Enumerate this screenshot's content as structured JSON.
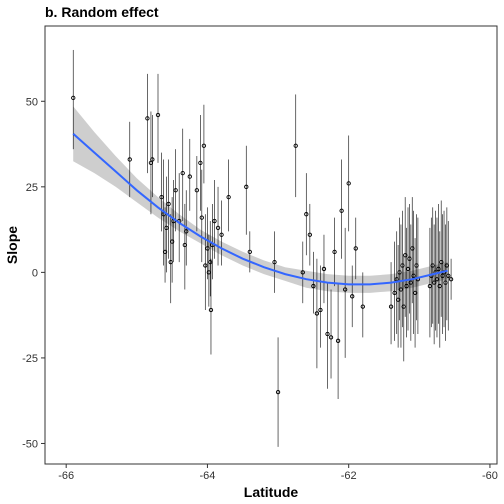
{
  "chart_data": {
    "type": "scatter",
    "title": "b. Random effect",
    "xlabel": "Latitude",
    "ylabel": "Slope",
    "xlim": [
      -66.3,
      -59.9
    ],
    "ylim": [
      -56,
      72
    ],
    "xticks": [
      -66,
      -64,
      -62,
      -60
    ],
    "yticks": [
      -50,
      -25,
      0,
      25,
      50
    ],
    "grid": false,
    "colors": {
      "points": "#000000",
      "errorbars": "#000000",
      "smooth": "#3366ff",
      "ribbon": "#bdbdbd"
    },
    "smooth": {
      "x": [
        -65.9,
        -65.6,
        -65.3,
        -65.0,
        -64.7,
        -64.4,
        -64.1,
        -63.8,
        -63.5,
        -63.2,
        -62.9,
        -62.6,
        -62.3,
        -62.0,
        -61.7,
        -61.4,
        -61.1,
        -60.8,
        -60.6
      ],
      "y": [
        40.5,
        35.0,
        29.5,
        24.0,
        19.0,
        14.5,
        10.5,
        7.0,
        4.0,
        1.5,
        -0.5,
        -2.0,
        -3.0,
        -3.5,
        -3.5,
        -3.0,
        -2.0,
        -0.5,
        0.5
      ],
      "lower": [
        32.5,
        29.0,
        25.0,
        20.5,
        16.0,
        12.0,
        8.5,
        5.0,
        2.0,
        -0.5,
        -2.5,
        -4.5,
        -5.5,
        -6.0,
        -6.0,
        -5.5,
        -4.5,
        -3.0,
        -2.0
      ],
      "upper": [
        48.5,
        41.0,
        34.0,
        27.5,
        22.0,
        17.0,
        12.5,
        9.0,
        6.0,
        3.5,
        1.5,
        0.5,
        -0.5,
        -1.0,
        -1.0,
        -0.5,
        0.5,
        2.0,
        3.0
      ]
    },
    "points": [
      {
        "x": -65.9,
        "y": 51,
        "lo": 36,
        "hi": 65
      },
      {
        "x": -65.1,
        "y": 33,
        "lo": 22,
        "hi": 44
      },
      {
        "x": -64.85,
        "y": 45,
        "lo": 29,
        "hi": 58
      },
      {
        "x": -64.8,
        "y": 32,
        "lo": 17,
        "hi": 47
      },
      {
        "x": -64.78,
        "y": 33,
        "lo": 22,
        "hi": 46
      },
      {
        "x": -64.7,
        "y": 46,
        "lo": 32,
        "hi": 58
      },
      {
        "x": -64.65,
        "y": 22,
        "lo": 12,
        "hi": 35
      },
      {
        "x": -64.62,
        "y": 17,
        "lo": 2,
        "hi": 33
      },
      {
        "x": -64.6,
        "y": 6,
        "lo": -3,
        "hi": 19
      },
      {
        "x": -64.58,
        "y": 13,
        "lo": 0,
        "hi": 28
      },
      {
        "x": -64.55,
        "y": 20,
        "lo": 4,
        "hi": 33
      },
      {
        "x": -64.52,
        "y": 3,
        "lo": -9,
        "hi": 17
      },
      {
        "x": -64.5,
        "y": 9,
        "lo": -3,
        "hi": 22
      },
      {
        "x": -64.48,
        "y": 15,
        "lo": 3,
        "hi": 27
      },
      {
        "x": -64.45,
        "y": 24,
        "lo": 12,
        "hi": 36
      },
      {
        "x": -64.4,
        "y": 15,
        "lo": 3,
        "hi": 29
      },
      {
        "x": -64.35,
        "y": 29,
        "lo": 15,
        "hi": 42
      },
      {
        "x": -64.32,
        "y": 8,
        "lo": -5,
        "hi": 20
      },
      {
        "x": -64.3,
        "y": 12,
        "lo": 2,
        "hi": 24
      },
      {
        "x": -64.25,
        "y": 28,
        "lo": 18,
        "hi": 39
      },
      {
        "x": -64.15,
        "y": 24,
        "lo": 12,
        "hi": 34
      },
      {
        "x": -64.1,
        "y": 32,
        "lo": 18,
        "hi": 46
      },
      {
        "x": -64.08,
        "y": 16,
        "lo": 3,
        "hi": 30
      },
      {
        "x": -64.05,
        "y": 37,
        "lo": 26,
        "hi": 49
      },
      {
        "x": -64.03,
        "y": 2,
        "lo": -11,
        "hi": 17
      },
      {
        "x": -64.0,
        "y": 7,
        "lo": -2,
        "hi": 19
      },
      {
        "x": -63.98,
        "y": 0,
        "lo": -10,
        "hi": 11
      },
      {
        "x": -63.96,
        "y": 3,
        "lo": -7,
        "hi": 15
      },
      {
        "x": -63.95,
        "y": -11,
        "lo": -24,
        "hi": 4
      },
      {
        "x": -63.93,
        "y": 8,
        "lo": -2,
        "hi": 20
      },
      {
        "x": -63.9,
        "y": 15,
        "lo": 4,
        "hi": 27
      },
      {
        "x": -63.85,
        "y": 13,
        "lo": 2,
        "hi": 25
      },
      {
        "x": -63.8,
        "y": 11,
        "lo": 2,
        "hi": 21
      },
      {
        "x": -63.7,
        "y": 22,
        "lo": 12,
        "hi": 33
      },
      {
        "x": -63.45,
        "y": 25,
        "lo": 11,
        "hi": 37
      },
      {
        "x": -63.4,
        "y": 6,
        "lo": 0,
        "hi": 12
      },
      {
        "x": -63.05,
        "y": 3,
        "lo": -6,
        "hi": 12
      },
      {
        "x": -63.0,
        "y": -35,
        "lo": -51,
        "hi": -19
      },
      {
        "x": -62.75,
        "y": 37,
        "lo": 22,
        "hi": 52
      },
      {
        "x": -62.65,
        "y": 0,
        "lo": -9,
        "hi": 9
      },
      {
        "x": -62.6,
        "y": 17,
        "lo": 5,
        "hi": 29
      },
      {
        "x": -62.55,
        "y": 11,
        "lo": 2,
        "hi": 20
      },
      {
        "x": -62.5,
        "y": -4,
        "lo": -12,
        "hi": 6
      },
      {
        "x": -62.45,
        "y": -12,
        "lo": -28,
        "hi": 4
      },
      {
        "x": -62.4,
        "y": -11,
        "lo": -22,
        "hi": 2
      },
      {
        "x": -62.35,
        "y": 1,
        "lo": -9,
        "hi": 11
      },
      {
        "x": -62.3,
        "y": -18,
        "lo": -34,
        "hi": -3
      },
      {
        "x": -62.25,
        "y": -19,
        "lo": -31,
        "hi": -5
      },
      {
        "x": -62.2,
        "y": 6,
        "lo": -4,
        "hi": 16
      },
      {
        "x": -62.15,
        "y": -20,
        "lo": -37,
        "hi": -3
      },
      {
        "x": -62.1,
        "y": 18,
        "lo": 4,
        "hi": 33
      },
      {
        "x": -62.05,
        "y": -5,
        "lo": -25,
        "hi": 13
      },
      {
        "x": -62.0,
        "y": 26,
        "lo": 12,
        "hi": 40
      },
      {
        "x": -61.95,
        "y": -7,
        "lo": -16,
        "hi": 2
      },
      {
        "x": -61.9,
        "y": 7,
        "lo": -2,
        "hi": 16
      },
      {
        "x": -61.8,
        "y": -10,
        "lo": -19,
        "hi": 0
      },
      {
        "x": -61.4,
        "y": -10,
        "lo": -21,
        "hi": 3
      },
      {
        "x": -61.35,
        "y": -6,
        "lo": -20,
        "hi": 9
      },
      {
        "x": -61.32,
        "y": -2,
        "lo": -18,
        "hi": 12
      },
      {
        "x": -61.3,
        "y": -8,
        "lo": -22,
        "hi": 8
      },
      {
        "x": -61.28,
        "y": 0,
        "lo": -14,
        "hi": 16
      },
      {
        "x": -61.26,
        "y": -5,
        "lo": -22,
        "hi": 14
      },
      {
        "x": -61.24,
        "y": 2,
        "lo": -16,
        "hi": 18
      },
      {
        "x": -61.22,
        "y": -10,
        "lo": -26,
        "hi": 5
      },
      {
        "x": -61.2,
        "y": 5,
        "lo": -13,
        "hi": 22
      },
      {
        "x": -61.18,
        "y": -4,
        "lo": -19,
        "hi": 13
      },
      {
        "x": -61.16,
        "y": 1,
        "lo": -17,
        "hi": 19
      },
      {
        "x": -61.14,
        "y": 4,
        "lo": -12,
        "hi": 20
      },
      {
        "x": -61.12,
        "y": -3,
        "lo": -20,
        "hi": 14
      },
      {
        "x": -61.1,
        "y": 7,
        "lo": -9,
        "hi": 22
      },
      {
        "x": -61.08,
        "y": -1,
        "lo": -18,
        "hi": 18
      },
      {
        "x": -61.06,
        "y": -6,
        "lo": -22,
        "hi": 10
      },
      {
        "x": -61.04,
        "y": 2,
        "lo": -14,
        "hi": 17
      },
      {
        "x": -61.02,
        "y": -2,
        "lo": -18,
        "hi": 16
      },
      {
        "x": -60.85,
        "y": -4,
        "lo": -19,
        "hi": 13
      },
      {
        "x": -60.83,
        "y": -1,
        "lo": -16,
        "hi": 16
      },
      {
        "x": -60.81,
        "y": 2,
        "lo": -15,
        "hi": 19
      },
      {
        "x": -60.79,
        "y": -3,
        "lo": -21,
        "hi": 14
      },
      {
        "x": -60.77,
        "y": 0,
        "lo": -17,
        "hi": 18
      },
      {
        "x": -60.75,
        "y": -2,
        "lo": -19,
        "hi": 16
      },
      {
        "x": -60.73,
        "y": 1,
        "lo": -15,
        "hi": 20
      },
      {
        "x": -60.71,
        "y": -4,
        "lo": -22,
        "hi": 12
      },
      {
        "x": -60.69,
        "y": 3,
        "lo": -13,
        "hi": 21
      },
      {
        "x": -60.67,
        "y": -1,
        "lo": -18,
        "hi": 17
      },
      {
        "x": -60.65,
        "y": 0,
        "lo": -16,
        "hi": 18
      },
      {
        "x": -60.63,
        "y": -3,
        "lo": -20,
        "hi": 14
      },
      {
        "x": -60.61,
        "y": 2,
        "lo": -14,
        "hi": 19
      },
      {
        "x": -60.59,
        "y": -1,
        "lo": -17,
        "hi": 15
      },
      {
        "x": -60.55,
        "y": -2,
        "lo": -8,
        "hi": 4
      }
    ]
  }
}
